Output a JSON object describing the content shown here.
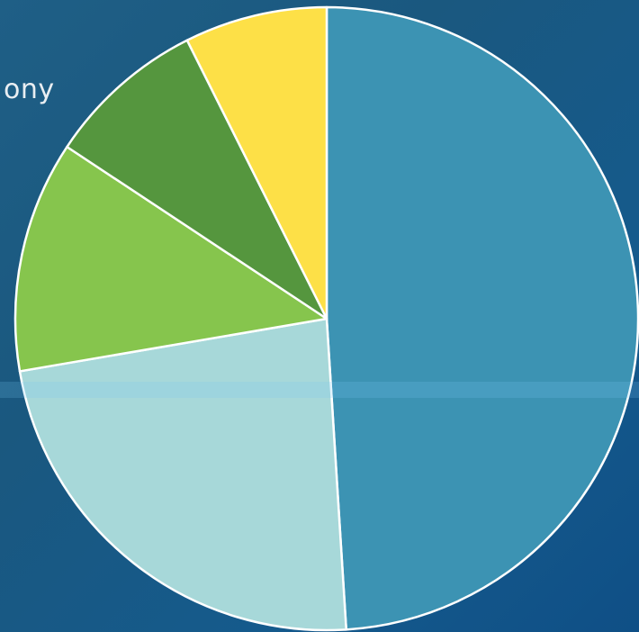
{
  "fragment_label": "ony",
  "chart_data": {
    "type": "pie",
    "title": "",
    "slices": [
      {
        "value": 49.0,
        "color": "#3c93b3"
      },
      {
        "value": 23.3,
        "color": "#a7d8d9"
      },
      {
        "value": 12.0,
        "color": "#86c54d"
      },
      {
        "value": 8.3,
        "color": "#55963e"
      },
      {
        "value": 7.4,
        "color": "#fde047"
      }
    ],
    "start_angle_deg": 0,
    "direction": "clockwise",
    "stroke_color": "#ffffff"
  }
}
